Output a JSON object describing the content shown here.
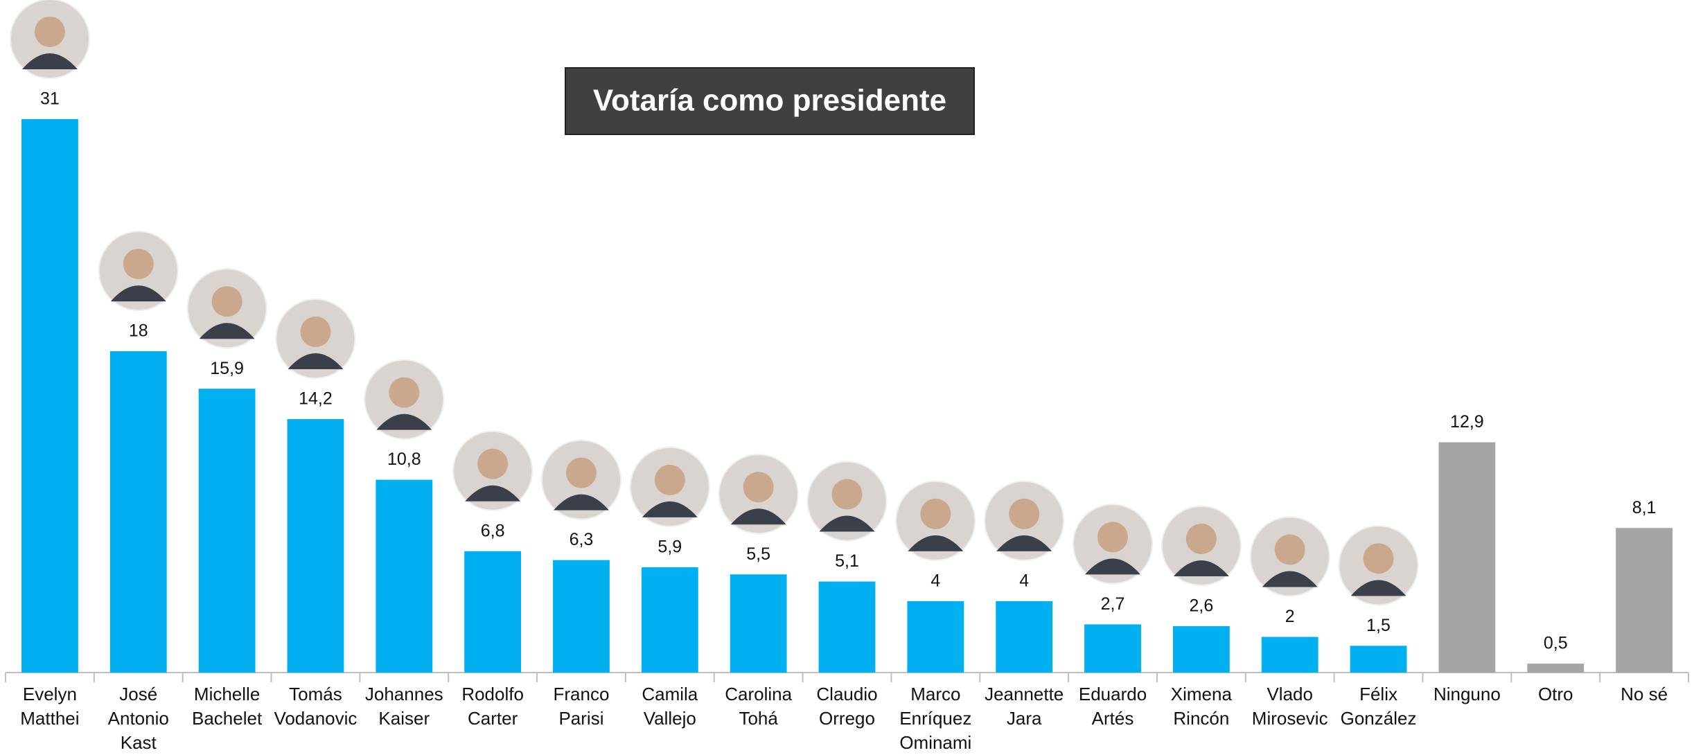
{
  "chart_data": {
    "type": "bar",
    "title": "Votaría como presidente",
    "categories": [
      "Evelyn Matthei",
      "José Antonio Kast",
      "Michelle Bachelet",
      "Tomás Vodanovic",
      "Johannes Kaiser",
      "Rodolfo Carter",
      "Franco Parisi",
      "Camila Vallejo",
      "Carolina Tohá",
      "Claudio Orrego",
      "Marco Enríquez Ominami",
      "Jeannette Jara",
      "Eduardo Artés",
      "Ximena Rincón",
      "Vlado Mirosevic",
      "Félix González",
      "Ninguno",
      "Otro",
      "No sé"
    ],
    "values": [
      31,
      18,
      15.9,
      14.2,
      10.8,
      6.8,
      6.3,
      5.9,
      5.5,
      5.1,
      4,
      4,
      2.7,
      2.6,
      2,
      1.5,
      12.9,
      0.5,
      8.1
    ],
    "value_labels": [
      "31",
      "18",
      "15,9",
      "14,2",
      "10,8",
      "6,8",
      "6,3",
      "5,9",
      "5,5",
      "5,1",
      "4",
      "4",
      "2,7",
      "2,6",
      "2",
      "1,5",
      "12,9",
      "0,5",
      "8,1"
    ],
    "colors": [
      "#00b0f0",
      "#00b0f0",
      "#00b0f0",
      "#00b0f0",
      "#00b0f0",
      "#00b0f0",
      "#00b0f0",
      "#00b0f0",
      "#00b0f0",
      "#00b0f0",
      "#00b0f0",
      "#00b0f0",
      "#00b0f0",
      "#00b0f0",
      "#00b0f0",
      "#00b0f0",
      "#a5a5a5",
      "#a5a5a5",
      "#a5a5a5"
    ]
  }
}
